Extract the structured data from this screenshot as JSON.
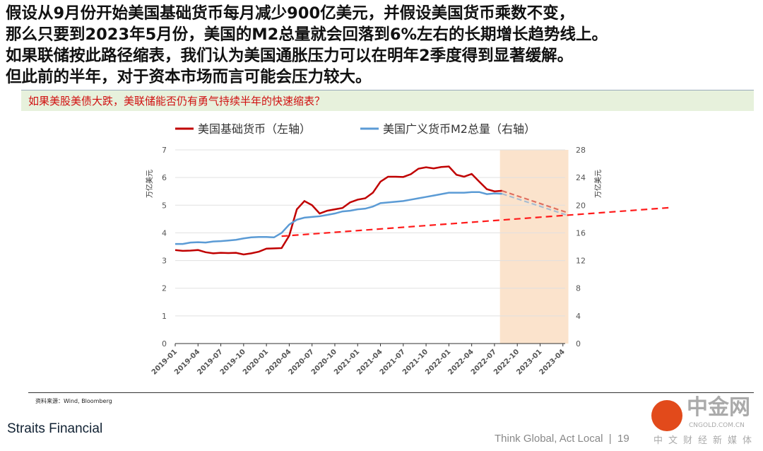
{
  "header": {
    "text": "假设从9月份开始美国基础货币每月减少900亿美元，并假设美国货币乘数不变，\n那么只要到2023年5月份，美国的M2总量就会回落到6%左右的长期增长趋势线上。\n如果联储按此路径缩表，我们认为美国通胀压力可以在明年2季度得到显著缓解。\n但此前的半年，对于资本市场而言可能会压力较大。"
  },
  "banner": "如果美股美债大跌，美联储能否仍有勇气持续半年的快速缩表？",
  "source": "资料来源：Wind, Bloomberg",
  "footer": {
    "brand": "Straits Financial",
    "tagline": "Think Global, Act Local",
    "page": "19"
  },
  "watermark": {
    "name": "中金网",
    "url": "CNGOLD.COM.CN",
    "slogan": "中文财经新媒体"
  },
  "chart_data": {
    "type": "line",
    "ylabel_left": "万亿美元",
    "ylabel_right": "万亿美元",
    "ylim_left": [
      0,
      7
    ],
    "ylim_right": [
      0,
      28
    ],
    "yticks_left": [
      0,
      1,
      2,
      3,
      4,
      5,
      6,
      7
    ],
    "yticks_right": [
      0,
      4,
      8,
      12,
      16,
      20,
      24,
      28
    ],
    "xticks": [
      "2019-01",
      "2019-04",
      "2019-07",
      "2019-10",
      "2020-01",
      "2020-04",
      "2020-07",
      "2020-10",
      "2021-01",
      "2021-04",
      "2021-07",
      "2021-10",
      "2022-01",
      "2022-04",
      "2022-07",
      "2022-10",
      "2023-01",
      "2023-04"
    ],
    "grid": true,
    "legend": "top",
    "shaded_range": [
      "2022-08",
      "2023-05"
    ],
    "shade_color": "#fbe3cc",
    "start": "2019-01",
    "series": [
      {
        "name": "美国基础货币（左轴）",
        "axis": "left",
        "color": "#c00000",
        "values": [
          3.38,
          3.35,
          3.36,
          3.38,
          3.3,
          3.26,
          3.28,
          3.27,
          3.28,
          3.22,
          3.26,
          3.32,
          3.43,
          3.44,
          3.45,
          3.9,
          4.85,
          5.15,
          5.0,
          4.7,
          4.8,
          4.85,
          4.9,
          5.1,
          5.2,
          5.25,
          5.45,
          5.85,
          6.03,
          6.03,
          6.02,
          6.12,
          6.32,
          6.37,
          6.33,
          6.38,
          6.4,
          6.1,
          6.03,
          6.13,
          5.85,
          5.58,
          5.5,
          5.52
        ],
        "forecast": {
          "from": [
            "2022-08",
            5.52
          ],
          "to": [
            "2023-05",
            4.72
          ],
          "color": "#e07060"
        }
      },
      {
        "name": "美国广义货币M2总量（右轴）",
        "axis": "right",
        "color": "#5b9bd5",
        "values": [
          14.4,
          14.4,
          14.6,
          14.65,
          14.6,
          14.75,
          14.8,
          14.9,
          15.0,
          15.2,
          15.35,
          15.4,
          15.4,
          15.35,
          16.0,
          17.2,
          17.9,
          18.2,
          18.3,
          18.4,
          18.6,
          18.8,
          19.1,
          19.2,
          19.4,
          19.5,
          19.8,
          20.3,
          20.4,
          20.5,
          20.6,
          20.8,
          21.0,
          21.2,
          21.4,
          21.6,
          21.8,
          21.8,
          21.8,
          21.9,
          21.9,
          21.6,
          21.7,
          21.65
        ],
        "forecast": {
          "from": [
            "2022-08",
            21.65
          ],
          "to": [
            "2023-05",
            18.5
          ],
          "color": "#a9bcd0"
        }
      }
    ],
    "trendline": {
      "axis": "left",
      "from": [
        "2020-03",
        3.88
      ],
      "to": [
        "2024-06",
        4.91
      ],
      "color": "#ff1a1a"
    }
  }
}
